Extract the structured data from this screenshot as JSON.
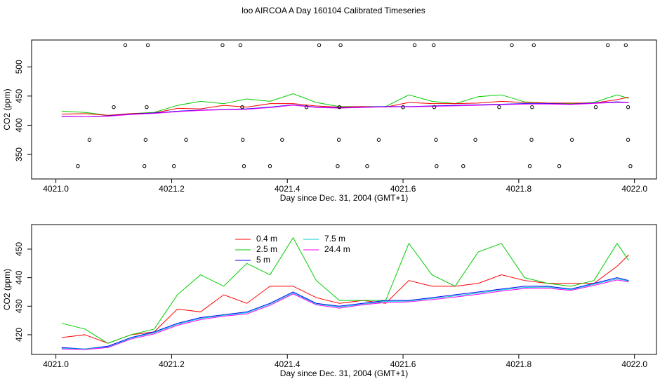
{
  "chart_data": [
    {
      "type": "line",
      "title": "loo AIRCOA A  Day 160104  Calibrated Timeseries",
      "xlabel": "Day since Dec. 31, 2004 (GMT+1)",
      "ylabel": "CO2 (ppm)",
      "xlim": [
        4020.958,
        4022.038
      ],
      "ylim": [
        308,
        546
      ],
      "xticks": [
        {
          "value": 4021,
          "label": "4021.0"
        },
        4021.2,
        4021.4,
        4021.6,
        4021.8,
        {
          "value": 4022,
          "label": "4022.0"
        }
      ],
      "yticks": [
        350,
        400,
        450,
        500
      ],
      "x": [
        4021.01,
        4021.05,
        4021.09,
        4021.13,
        4021.17,
        4021.21,
        4021.25,
        4021.29,
        4021.33,
        4021.37,
        4021.41,
        4021.45,
        4021.49,
        4021.53,
        4021.57,
        4021.61,
        4021.65,
        4021.69,
        4021.73,
        4021.77,
        4021.81,
        4021.85,
        4021.89,
        4021.93,
        4021.97,
        4021.99
      ],
      "series": [
        {
          "color": "#00cd00",
          "values": [
            424,
            422,
            417,
            420,
            422,
            434,
            441,
            437,
            445,
            441,
            454,
            439,
            432,
            432,
            432,
            452,
            441,
            437,
            449,
            452,
            440,
            438,
            437,
            439,
            452,
            446
          ]
        },
        {
          "color": "#ff0000",
          "values": [
            419,
            420,
            417,
            420,
            421,
            429,
            428,
            434,
            431,
            437,
            437,
            433,
            431,
            432,
            431,
            439,
            437,
            437,
            438,
            441,
            439,
            438,
            438,
            438,
            444,
            448
          ]
        },
        {
          "color": "#00cccc",
          "values": [
            415.2,
            415,
            415.7,
            418.8,
            420.7,
            423.7,
            425.7,
            426.8,
            427.7,
            430.7,
            434.6,
            430.8,
            429.7,
            430.7,
            431.7,
            431.8,
            432.7,
            433.6,
            434.6,
            435.7,
            436.6,
            436.7,
            435.8,
            437.7,
            439.6,
            438.8
          ]
        },
        {
          "color": "#0000ff",
          "values": [
            415.5,
            415,
            416,
            419,
            421,
            424,
            426,
            427,
            428,
            431,
            435,
            431,
            430,
            431,
            432,
            432,
            433,
            434,
            435,
            436,
            437,
            437,
            436,
            438,
            440,
            439
          ]
        },
        {
          "color": "#ff00ff",
          "values": [
            415,
            414.8,
            415.5,
            418.5,
            420.3,
            423.3,
            425.3,
            426.5,
            427.3,
            430.3,
            434.3,
            430.5,
            429.3,
            430.5,
            431.3,
            431.5,
            432.3,
            433.2,
            434.2,
            435.3,
            436.2,
            436.3,
            435.5,
            437.3,
            439.2,
            438.5
          ]
        }
      ],
      "points": {
        "color": "#000000",
        "x": [
          4021.12,
          4021.159,
          4021.288,
          4021.319,
          4021.455,
          4021.492,
          4021.62,
          4021.653,
          4021.788,
          4021.826,
          4021.954,
          4021.985,
          4021.1,
          4021.157,
          4021.322,
          4021.433,
          4021.49,
          4021.6,
          4021.654,
          4021.766,
          4021.823,
          4021.933,
          4021.989,
          4021.058,
          4021.155,
          4021.225,
          4021.323,
          4021.391,
          4021.489,
          4021.558,
          4021.657,
          4021.725,
          4021.822,
          4021.892,
          4021.989,
          4021.038,
          4021.153,
          4021.204,
          4021.325,
          4021.37,
          4021.487,
          4021.538,
          4021.658,
          4021.704,
          4021.819,
          4021.87,
          4021.993
        ],
        "values": [
          537,
          537,
          537,
          537,
          537,
          537,
          537,
          537,
          537,
          537,
          537,
          537,
          431,
          431,
          431,
          431,
          431,
          431,
          431,
          431,
          431,
          431,
          431,
          375,
          375,
          375,
          375,
          375,
          375,
          375,
          375,
          375,
          375,
          375,
          375,
          330,
          330,
          330,
          330,
          330,
          330,
          330,
          330,
          330,
          330,
          330,
          330
        ]
      }
    },
    {
      "type": "line",
      "xlabel": "Day since Dec. 31, 2004 (GMT+1)",
      "ylabel": "CO2 (ppm)",
      "xlim": [
        4020.958,
        4022.038
      ],
      "ylim": [
        413.1,
        458.6
      ],
      "xticks": [
        {
          "value": 4021,
          "label": "4021.0"
        },
        4021.2,
        4021.4,
        4021.6,
        4021.8,
        {
          "value": 4022,
          "label": "4022.0"
        }
      ],
      "yticks": [
        420,
        430,
        440,
        450
      ],
      "x": [
        4021.01,
        4021.05,
        4021.09,
        4021.13,
        4021.17,
        4021.21,
        4021.25,
        4021.29,
        4021.33,
        4021.37,
        4021.41,
        4021.45,
        4021.49,
        4021.53,
        4021.57,
        4021.61,
        4021.65,
        4021.69,
        4021.73,
        4021.77,
        4021.81,
        4021.85,
        4021.89,
        4021.93,
        4021.97,
        4021.99
      ],
      "series": [
        {
          "name": "0.4 m",
          "color": "#ff0000",
          "values": [
            419,
            420,
            417,
            420,
            421,
            429,
            428,
            434,
            431,
            437,
            437,
            433,
            431,
            432,
            431,
            439,
            437,
            437,
            438,
            441,
            439,
            438,
            438,
            438,
            444,
            448
          ]
        },
        {
          "name": "2.5 m",
          "color": "#00cd00",
          "values": [
            424,
            422,
            417,
            420,
            422,
            434,
            441,
            437,
            445,
            441,
            454,
            439,
            432,
            432,
            432,
            452,
            441,
            437,
            449,
            452,
            440,
            438,
            437,
            439,
            452,
            446
          ]
        },
        {
          "name": "5 m",
          "color": "#0000ff",
          "values": [
            415.5,
            415,
            416,
            419,
            421,
            424,
            426,
            427,
            428,
            431,
            435,
            431,
            430,
            431,
            432,
            432,
            433,
            434,
            435,
            436,
            437,
            437,
            436,
            438,
            440,
            439
          ]
        },
        {
          "name": "7.5 m",
          "color": "#00cccc",
          "values": [
            415.2,
            415,
            415.7,
            418.8,
            420.7,
            423.7,
            425.7,
            426.8,
            427.7,
            430.7,
            434.6,
            430.8,
            429.7,
            430.7,
            431.7,
            431.8,
            432.7,
            433.6,
            434.6,
            435.7,
            436.6,
            436.7,
            435.8,
            437.7,
            439.6,
            438.8
          ]
        },
        {
          "name": "24.4 m",
          "color": "#ff00ff",
          "values": [
            415,
            414.8,
            415.5,
            418.5,
            420.3,
            423.3,
            425.3,
            426.5,
            427.3,
            430.3,
            434.3,
            430.5,
            429.3,
            430.5,
            431.3,
            431.5,
            432.3,
            433.2,
            434.2,
            435.3,
            436.2,
            436.3,
            435.5,
            437.3,
            439.2,
            438.5
          ]
        }
      ]
    }
  ]
}
